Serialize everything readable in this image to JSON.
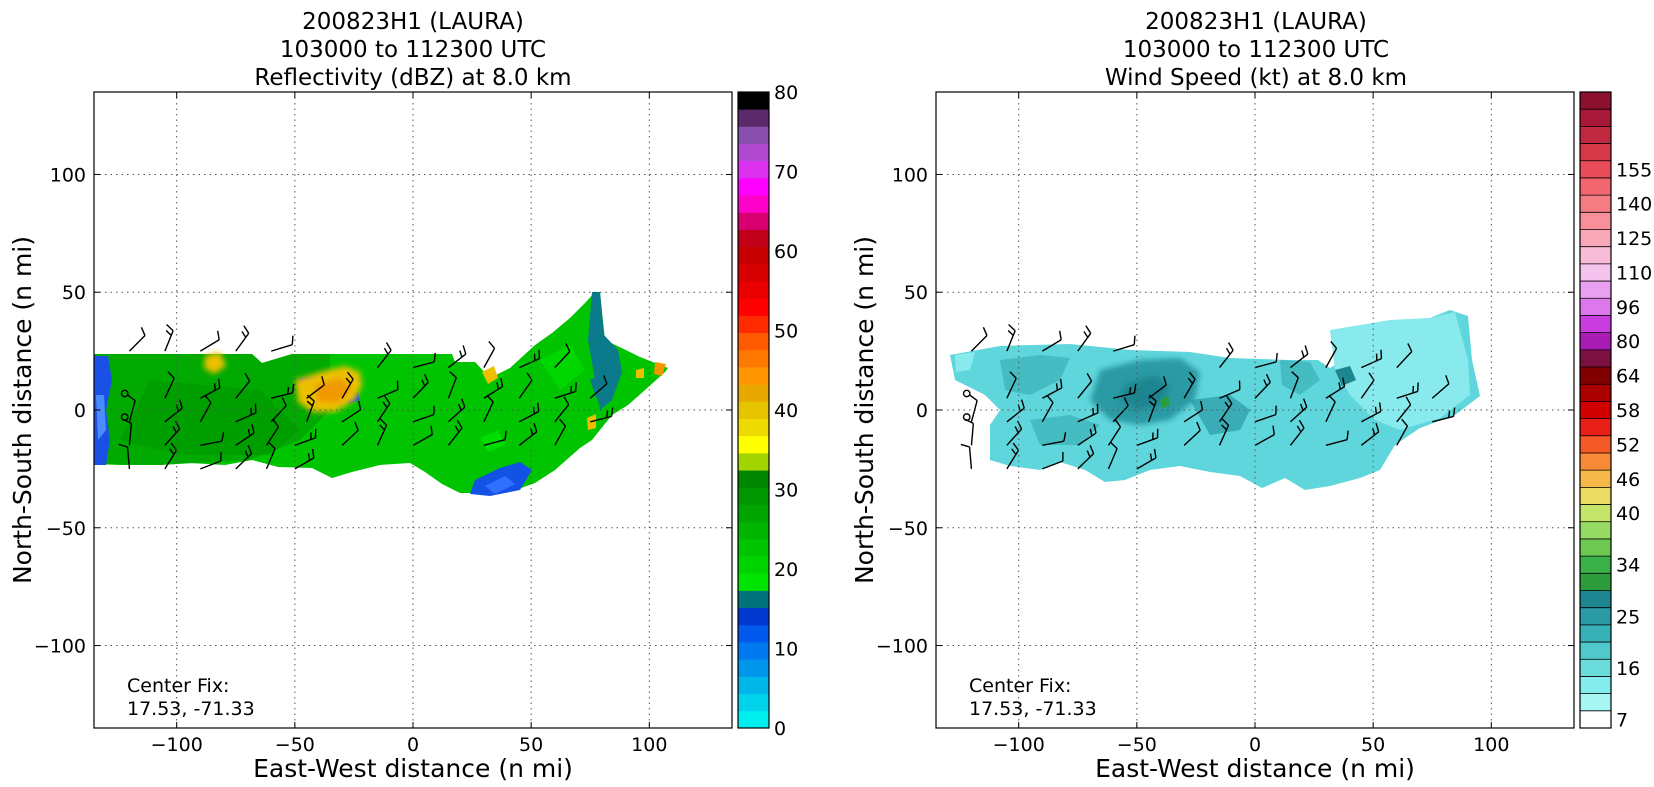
{
  "chart_data": [
    {
      "type": "heatmap",
      "title_lines": [
        "200823H1 (LAURA)",
        "103000 to 112300 UTC",
        "Reflectivity (dBZ) at 8.0 km"
      ],
      "xlabel": "East-West distance (n mi)",
      "ylabel": "North-South distance (n mi)",
      "xlim": [
        -135,
        135
      ],
      "ylim": [
        -135,
        135
      ],
      "xticks": [
        -100,
        -50,
        0,
        50,
        100
      ],
      "yticks": [
        -100,
        -50,
        0,
        50,
        100
      ],
      "xtick_labels": [
        "−100",
        "−50",
        "0",
        "50",
        "100"
      ],
      "ytick_labels": [
        "−100",
        "−50",
        "0",
        "50",
        "100"
      ],
      "grid": true,
      "annotation": [
        "Center Fix:",
        "17.53, -71.33"
      ],
      "colorbar": {
        "min": 0,
        "max": 80,
        "tick_values": [
          0,
          10,
          20,
          30,
          40,
          50,
          60,
          70,
          80
        ],
        "tick_labels": [
          "0",
          "10",
          "20",
          "30",
          "40",
          "50",
          "60",
          "70",
          "80"
        ],
        "colors": [
          "#00eeee",
          "#00d2ea",
          "#00b6e8",
          "#0096ec",
          "#0078f0",
          "#0058ec",
          "#0038d0",
          "#00747a",
          "#00e400",
          "#00d400",
          "#00c400",
          "#00b400",
          "#00a400",
          "#009600",
          "#008600",
          "#a2d400",
          "#ffff00",
          "#eeda00",
          "#e6c400",
          "#e8a800",
          "#ff9600",
          "#ff7800",
          "#ff5a00",
          "#ff2a00",
          "#ff0000",
          "#ea0000",
          "#d60000",
          "#c60000",
          "#c00018",
          "#d80070",
          "#ff00c8",
          "#ff00ff",
          "#dc32f0",
          "#b048d0",
          "#8a50b0",
          "#5c2a6a",
          "#000000"
        ]
      },
      "field_colors": {
        "background": "#00c400",
        "dark": "#009e00",
        "weak": "#1452e6",
        "teal": "#0b7a8a",
        "moderate": "#ecc000",
        "strong": "#f09800"
      },
      "barb_color": "#000000"
    },
    {
      "type": "heatmap",
      "title_lines": [
        "200823H1 (LAURA)",
        "103000 to 112300 UTC",
        "Wind Speed (kt) at 8.0 km"
      ],
      "xlabel": "East-West distance (n mi)",
      "ylabel": "North-South distance (n mi)",
      "xlim": [
        -135,
        135
      ],
      "ylim": [
        -135,
        135
      ],
      "xticks": [
        -100,
        -50,
        0,
        50,
        100
      ],
      "yticks": [
        -100,
        -50,
        0,
        50,
        100
      ],
      "xtick_labels": [
        "−100",
        "−50",
        "0",
        "50",
        "100"
      ],
      "ytick_labels": [
        "−100",
        "−50",
        "0",
        "50",
        "100"
      ],
      "grid": true,
      "annotation": [
        "Center Fix:",
        "17.53, -71.33"
      ],
      "colorbar": {
        "tick_values": [
          7,
          16,
          25,
          34,
          40,
          46,
          52,
          58,
          64,
          80,
          96,
          110,
          125,
          140,
          155
        ],
        "tick_labels": [
          "7",
          "16",
          "25",
          "34",
          "40",
          "46",
          "52",
          "58",
          "64",
          "80",
          "96",
          "110",
          "125",
          "140",
          "155"
        ],
        "colors": [
          "#ffffff",
          "#a8f6f4",
          "#84ecec",
          "#6adcdc",
          "#50c8cc",
          "#38b0b8",
          "#2a9aa4",
          "#1e8690",
          "#2c9c3c",
          "#3ab048",
          "#6cc850",
          "#96dc64",
          "#c4e46a",
          "#ecdc64",
          "#f6b848",
          "#f68a36",
          "#f45a28",
          "#e82018",
          "#d00000",
          "#aa0000",
          "#800000",
          "#7c1040",
          "#a81cb4",
          "#c83ce0",
          "#dc78ec",
          "#eaa0f0",
          "#f4c4ee",
          "#f8bcd8",
          "#f8a8b8",
          "#f8909c",
          "#f67c84",
          "#f26670",
          "#e84c58",
          "#d63848",
          "#c02840",
          "#a81838",
          "#8c1030"
        ],
        "tick_label_indices": [
          0,
          3,
          6,
          9,
          12,
          14,
          16,
          18,
          20,
          22,
          24,
          26,
          28,
          30,
          32
        ]
      },
      "field_colors": {
        "background": "#5fd6dc",
        "light": "#88eaec",
        "mid": "#3fb4bc",
        "dark": "#2a9aa4",
        "darker": "#1e8690"
      },
      "barb_color": "#000000"
    }
  ]
}
